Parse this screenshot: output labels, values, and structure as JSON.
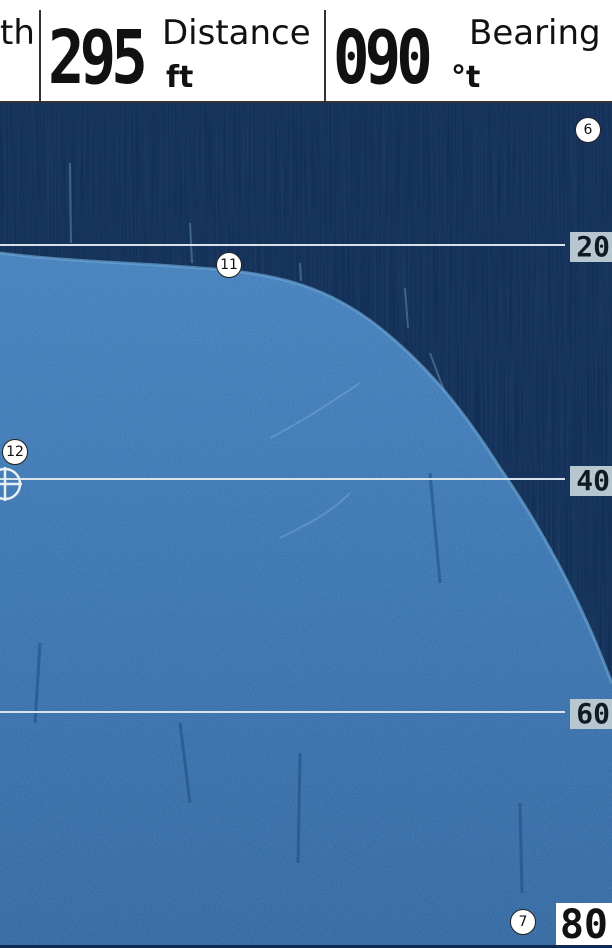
{
  "header": {
    "depth_label_partial": "th",
    "distance": {
      "value": "295",
      "label": "Distance",
      "unit": "ft"
    },
    "bearing": {
      "value": "090",
      "label": "Bearing",
      "unit": "°t"
    }
  },
  "depth_scale": [
    "20",
    "40",
    "60"
  ],
  "depth_bottom": "80",
  "callouts": {
    "c6": "6",
    "c7": "7",
    "c11": "11",
    "c12": "12"
  },
  "colors": {
    "water": "#0d2a52",
    "bottom": "#2f6fb0",
    "bottom_edge": "#5a93c9",
    "scale_line": "#d8e3ea",
    "scale_label_bg": "#b6c7cf"
  }
}
